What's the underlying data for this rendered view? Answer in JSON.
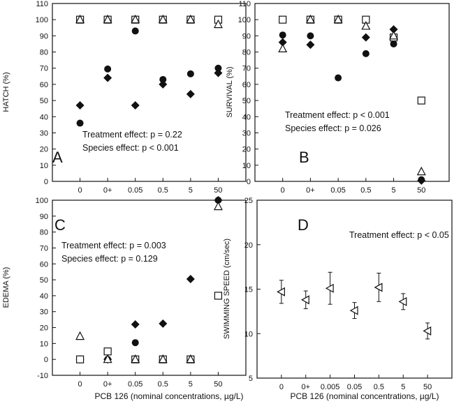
{
  "figure": {
    "xlabel": "PCB 126 (nominal concentrations, µg/L)"
  },
  "chart_data": [
    {
      "id": "A",
      "type": "scatter",
      "panel_label": "A",
      "ylabel": "HATCH (%)",
      "xlabel": "",
      "categories": [
        "0",
        "0+",
        "0.05",
        "0.5",
        "5",
        "50"
      ],
      "ylim": [
        0,
        110
      ],
      "yticks": [
        0,
        10,
        20,
        30,
        40,
        50,
        60,
        70,
        80,
        90,
        100,
        110
      ],
      "grid": false,
      "annotations": [
        "Treatment effect: p = 0.22",
        "Species effect: p < 0.001"
      ],
      "series": [
        {
          "marker": "circle-filled",
          "values": [
            36,
            69.5,
            93,
            63,
            66.5,
            70
          ]
        },
        {
          "marker": "diamond-filled",
          "values": [
            47,
            64,
            47,
            60,
            54,
            67
          ]
        },
        {
          "marker": "square-open",
          "values": [
            100,
            100,
            100,
            100,
            100,
            100
          ]
        },
        {
          "marker": "triangle-open",
          "values": [
            100,
            100,
            100,
            100,
            100,
            97
          ]
        }
      ]
    },
    {
      "id": "B",
      "type": "scatter",
      "panel_label": "B",
      "ylabel": "SURVIVAL (%)",
      "xlabel": "",
      "categories": [
        "0",
        "0+",
        "0.05",
        "0.5",
        "5",
        "50"
      ],
      "ylim": [
        0,
        110
      ],
      "yticks": [
        0,
        10,
        20,
        30,
        40,
        50,
        60,
        70,
        80,
        90,
        100,
        110
      ],
      "grid": false,
      "annotations": [
        "Treatment effect: p < 0.001",
        "Species effect: p = 0.026"
      ],
      "series": [
        {
          "marker": "circle-filled",
          "values": [
            90.5,
            90,
            64,
            79,
            85,
            1
          ]
        },
        {
          "marker": "diamond-filled",
          "values": [
            86,
            84.5,
            100,
            89,
            94,
            0.5
          ]
        },
        {
          "marker": "square-open",
          "values": [
            100,
            100,
            100,
            100,
            89,
            50
          ]
        },
        {
          "marker": "triangle-open",
          "values": [
            82,
            100,
            100,
            96,
            90,
            6
          ]
        }
      ]
    },
    {
      "id": "C",
      "type": "scatter",
      "panel_label": "C",
      "ylabel": "EDEMA (%)",
      "xlabel": "",
      "categories": [
        "0",
        "0+",
        "0.05",
        "0.5",
        "5",
        "50"
      ],
      "ylim": [
        -10,
        100
      ],
      "yticks": [
        -10,
        0,
        10,
        20,
        30,
        40,
        50,
        60,
        70,
        80,
        90,
        100
      ],
      "grid": false,
      "annotations": [
        "Treatment effect: p = 0.003",
        "Species effect: p = 0.129"
      ],
      "series": [
        {
          "marker": "circle-filled",
          "values": [
            0,
            0,
            10.5,
            0,
            0,
            100
          ]
        },
        {
          "marker": "diamond-filled",
          "values": [
            0,
            0,
            22,
            22.5,
            50.5,
            100
          ]
        },
        {
          "marker": "square-open",
          "values": [
            0,
            5,
            0,
            0,
            0,
            40
          ]
        },
        {
          "marker": "triangle-open",
          "values": [
            14.5,
            0,
            0,
            0,
            0,
            96
          ]
        }
      ]
    },
    {
      "id": "D",
      "type": "scatter",
      "panel_label": "D",
      "ylabel": "SWIMMING SPEED (cm/sec)",
      "xlabel": "",
      "categories": [
        "0",
        "0+",
        "0.005",
        "0.05",
        "0.5",
        "5",
        "50"
      ],
      "ylim": [
        5,
        25
      ],
      "yticks": [
        5,
        10,
        15,
        20,
        25
      ],
      "grid": false,
      "annotations": [
        "Treatment effect: p < 0.05"
      ],
      "series": [
        {
          "marker": "triangle-left-open",
          "values": [
            14.7,
            13.8,
            15.1,
            12.6,
            15.2,
            13.6,
            10.3
          ],
          "error": [
            1.3,
            1.0,
            1.8,
            0.9,
            1.6,
            0.9,
            0.9
          ]
        }
      ]
    }
  ]
}
